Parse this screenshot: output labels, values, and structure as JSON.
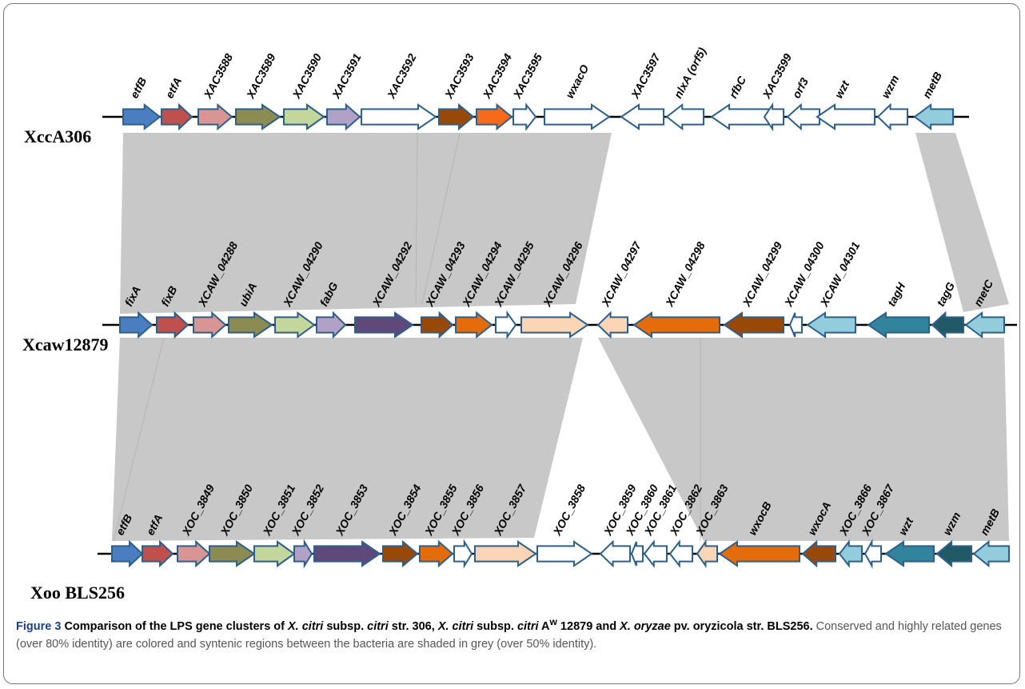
{
  "colors": {
    "steel_blue": "#4a7ec1",
    "red": "#c0504d",
    "pink": "#d99594",
    "olive": "#8b8b52",
    "light_green": "#c3d69b",
    "lavender": "#b2a1c7",
    "purple": "#5f497a",
    "brown": "#984807",
    "orange": "#e46c0a",
    "bright_orange": "#f86a1a",
    "peach": "#fbd5b5",
    "light_blue": "#93cddd",
    "teal": "#31849b",
    "dark_teal": "#215967",
    "white": "#ffffff",
    "outline": "#2e5f8a",
    "synteny_grey": "#c8c8c8"
  },
  "tracks": [
    {
      "strain": "XccA306",
      "genes": [
        {
          "label": "etfB",
          "color": "steel_blue",
          "dir": "forward"
        },
        {
          "label": "etfA",
          "color": "red",
          "dir": "forward"
        },
        {
          "label": "XAC3588",
          "color": "pink",
          "dir": "forward"
        },
        {
          "label": "XAC3589",
          "color": "olive",
          "dir": "forward"
        },
        {
          "label": "XAC3590",
          "color": "light_green",
          "dir": "forward"
        },
        {
          "label": "XAC3591",
          "color": "lavender",
          "dir": "forward"
        },
        {
          "label": "XAC3592",
          "color": "white",
          "dir": "forward"
        },
        {
          "label": "XAC3593",
          "color": "brown",
          "dir": "forward"
        },
        {
          "label": "XAC3594",
          "color": "bright_orange",
          "dir": "forward"
        },
        {
          "label": "XAC3595",
          "color": "white",
          "dir": "forward"
        },
        {
          "label": "wxacO",
          "color": "white",
          "dir": "forward"
        },
        {
          "label": "XAC3597",
          "color": "white",
          "dir": "reverse"
        },
        {
          "label": "nlxA (orf5)",
          "color": "white",
          "dir": "reverse"
        },
        {
          "label": "rfbC",
          "color": "white",
          "dir": "reverse"
        },
        {
          "label": "XAC3599",
          "color": "white",
          "dir": "reverse"
        },
        {
          "label": "orf3",
          "color": "white",
          "dir": "reverse"
        },
        {
          "label": "wzt",
          "color": "white",
          "dir": "reverse"
        },
        {
          "label": "wzm",
          "color": "white",
          "dir": "reverse"
        },
        {
          "label": "metB",
          "color": "light_blue",
          "dir": "reverse"
        }
      ]
    },
    {
      "strain": "Xcaw12879",
      "genes": [
        {
          "label": "fixA",
          "color": "steel_blue",
          "dir": "forward"
        },
        {
          "label": "fixB",
          "color": "red",
          "dir": "forward"
        },
        {
          "label": "XCAW_04288",
          "color": "pink",
          "dir": "forward"
        },
        {
          "label": "ubiA",
          "color": "olive",
          "dir": "forward"
        },
        {
          "label": "XCAW_04290",
          "color": "light_green",
          "dir": "forward"
        },
        {
          "label": "fabG",
          "color": "lavender",
          "dir": "forward"
        },
        {
          "label": "XCAW_04292",
          "color": "purple",
          "dir": "forward"
        },
        {
          "label": "XCAW_04293",
          "color": "brown",
          "dir": "forward"
        },
        {
          "label": "XCAW_04294",
          "color": "orange",
          "dir": "forward"
        },
        {
          "label": "XCAW_04295",
          "color": "white",
          "dir": "forward"
        },
        {
          "label": "XCAW_04296",
          "color": "peach",
          "dir": "forward"
        },
        {
          "label": "XCAW_04297",
          "color": "peach",
          "dir": "reverse"
        },
        {
          "label": "XCAW_04298",
          "color": "orange",
          "dir": "reverse"
        },
        {
          "label": "XCAW_04299",
          "color": "brown",
          "dir": "reverse"
        },
        {
          "label": "XCAW_04300",
          "color": "white",
          "dir": "reverse"
        },
        {
          "label": "XCAW_04301",
          "color": "light_blue",
          "dir": "reverse"
        },
        {
          "label": "tagH",
          "color": "teal",
          "dir": "reverse"
        },
        {
          "label": "tagG",
          "color": "dark_teal",
          "dir": "reverse"
        },
        {
          "label": "metC",
          "color": "light_blue",
          "dir": "reverse"
        }
      ]
    },
    {
      "strain": "Xoo BLS256",
      "genes": [
        {
          "label": "etfB",
          "color": "steel_blue",
          "dir": "forward"
        },
        {
          "label": "etfA",
          "color": "red",
          "dir": "forward"
        },
        {
          "label": "XOC_3849",
          "color": "pink",
          "dir": "forward"
        },
        {
          "label": "XOC_3850",
          "color": "olive",
          "dir": "forward"
        },
        {
          "label": "XOC_3851",
          "color": "light_green",
          "dir": "forward"
        },
        {
          "label": "XOC_3852",
          "color": "lavender",
          "dir": "forward"
        },
        {
          "label": "XOC_3853",
          "color": "purple",
          "dir": "forward"
        },
        {
          "label": "XOC_3854",
          "color": "brown",
          "dir": "forward"
        },
        {
          "label": "XOC_3855",
          "color": "orange",
          "dir": "forward"
        },
        {
          "label": "XOC_3856",
          "color": "white",
          "dir": "forward"
        },
        {
          "label": "XOC_3857",
          "color": "peach",
          "dir": "forward"
        },
        {
          "label": "XOC_3858",
          "color": "white",
          "dir": "forward"
        },
        {
          "label": "XOC_3859",
          "color": "white",
          "dir": "reverse"
        },
        {
          "label": "XOC_3860",
          "color": "white",
          "dir": "reverse"
        },
        {
          "label": "XOC_3861",
          "color": "white",
          "dir": "reverse"
        },
        {
          "label": "XOC_3862",
          "color": "white",
          "dir": "reverse"
        },
        {
          "label": "XOC_3863",
          "color": "peach",
          "dir": "reverse"
        },
        {
          "label": "wxocB",
          "color": "orange",
          "dir": "reverse"
        },
        {
          "label": "wxocA",
          "color": "brown",
          "dir": "reverse"
        },
        {
          "label": "XOC_3866",
          "color": "light_blue",
          "dir": "reverse"
        },
        {
          "label": "XOC_3867",
          "color": "white",
          "dir": "reverse"
        },
        {
          "label": "wzt",
          "color": "teal",
          "dir": "reverse"
        },
        {
          "label": "wzm",
          "color": "dark_teal",
          "dir": "reverse"
        },
        {
          "label": "metB",
          "color": "light_blue",
          "dir": "reverse"
        }
      ]
    }
  ],
  "caption": {
    "figure_label": "Figure 3",
    "title_parts": [
      {
        "text": "Comparison of the LPS gene clusters of ",
        "italic": false
      },
      {
        "text": "X. citri",
        "italic": true
      },
      {
        "text": " subsp. ",
        "italic": false
      },
      {
        "text": "citri",
        "italic": true
      },
      {
        "text": " str. 306, ",
        "italic": false
      },
      {
        "text": "X. citri",
        "italic": true
      },
      {
        "text": " subsp. ",
        "italic": false
      },
      {
        "text": "citri",
        "italic": true
      },
      {
        "text": " A",
        "italic": false
      },
      {
        "text": "w",
        "italic": false,
        "sup": true
      },
      {
        "text": " 12879 and ",
        "italic": false
      },
      {
        "text": "X. oryzae",
        "italic": true
      },
      {
        "text": " pv. oryzicola str. BLS256.",
        "italic": false
      }
    ],
    "body": "Conserved and highly related genes (over 80% identity) are colored and syntenic regions between the bacteria are shaded in grey (over 50% identity)."
  }
}
